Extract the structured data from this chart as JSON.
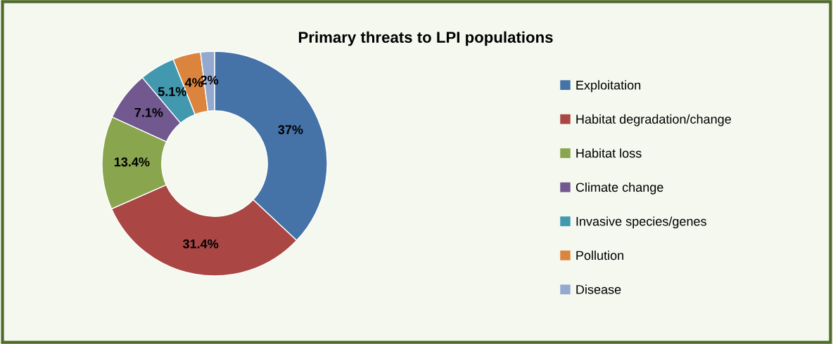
{
  "chart_data": {
    "type": "donut",
    "title": "Primary threats to LPI populations",
    "categories": [
      "Exploitation",
      "Habitat degradation/change",
      "Habitat loss",
      "Climate change",
      "Invasive species/genes",
      "Pollution",
      "Disease"
    ],
    "values": [
      37,
      31.4,
      13.4,
      7.1,
      5.1,
      4,
      2
    ],
    "colors": [
      "#4572a7",
      "#aa4643",
      "#89a54e",
      "#71588f",
      "#4198af",
      "#db843d",
      "#93a9cf"
    ],
    "value_labels": [
      "37%",
      "31.4%",
      "13.4%",
      "7.1%",
      "5.1%",
      "4%",
      "2%"
    ],
    "legend": "right"
  }
}
